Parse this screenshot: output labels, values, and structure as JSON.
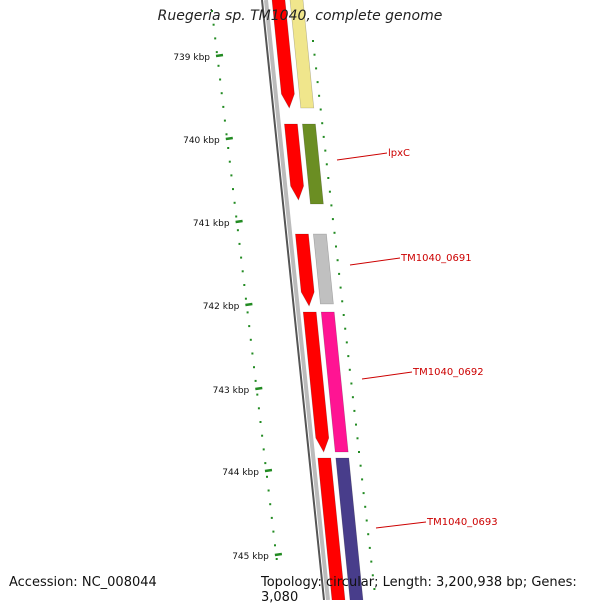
{
  "title": "Ruegeria sp. TM1040, complete genome",
  "accession_label": "Accession:",
  "accession": "NC_008044",
  "topology_label": "Topology:",
  "topology": "circular",
  "length_label": "Length:",
  "length": "3,200,938 bp",
  "genes_label": "Genes:",
  "genes": "3,080",
  "ticks": [
    {
      "label": "739 kbp"
    },
    {
      "label": "740 kbp"
    },
    {
      "label": "741 kbp"
    },
    {
      "label": "742 kbp"
    },
    {
      "label": "743 kbp"
    },
    {
      "label": "744 kbp"
    },
    {
      "label": "745 kbp"
    }
  ],
  "genes_shown": [
    {
      "name": "",
      "color": "#f0e68c"
    },
    {
      "name": "lpxC",
      "color": "#6b8e23"
    },
    {
      "name": "TM1040_0691",
      "color": "#c0c0c0"
    },
    {
      "name": "TM1040_0692",
      "color": "#ff1493"
    },
    {
      "name": "TM1040_0693",
      "color": "#483d8b"
    }
  ],
  "colors": {
    "cds": "#ff0000",
    "tick": "#228b22",
    "backbone": "#808080",
    "label": "#cc0000"
  }
}
